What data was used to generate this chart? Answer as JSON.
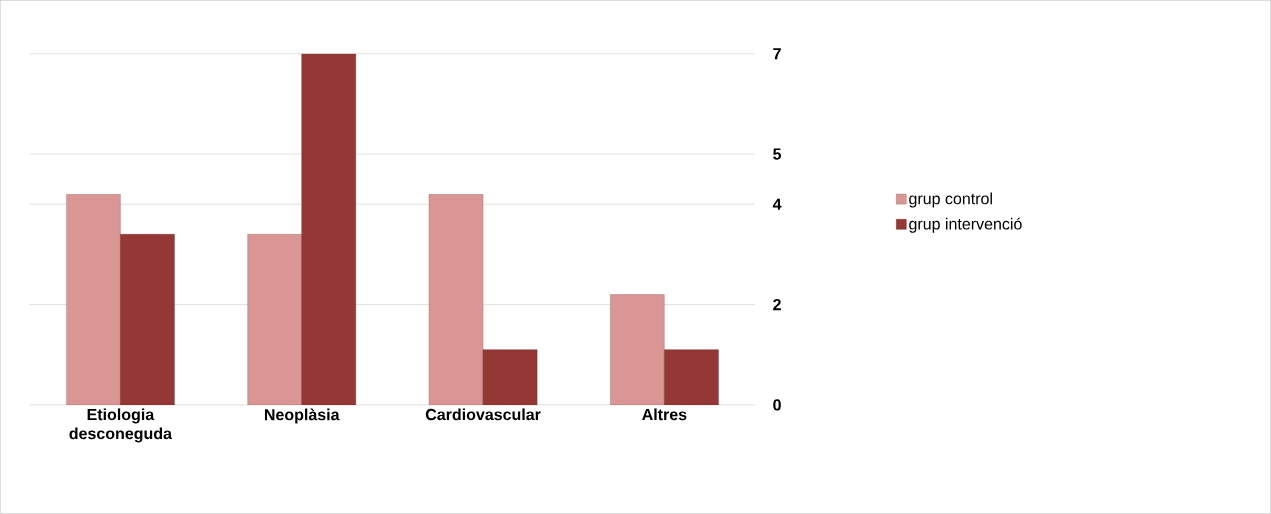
{
  "chart_data": {
    "type": "bar",
    "categories": [
      "Etiologia desconeguda",
      "Neoplàsia",
      "Cardiovascular",
      "Altres"
    ],
    "series": [
      {
        "name": "grup control",
        "color": "#d99694",
        "values": [
          4.2,
          3.4,
          4.2,
          2.2
        ]
      },
      {
        "name": "grup intervenció",
        "color": "#953735",
        "values": [
          3.4,
          7,
          1.1,
          1.1
        ]
      }
    ],
    "ylim": [
      0,
      7
    ],
    "yticks": [
      0,
      2,
      4,
      5,
      7
    ],
    "grid": "y",
    "legend": "right"
  }
}
